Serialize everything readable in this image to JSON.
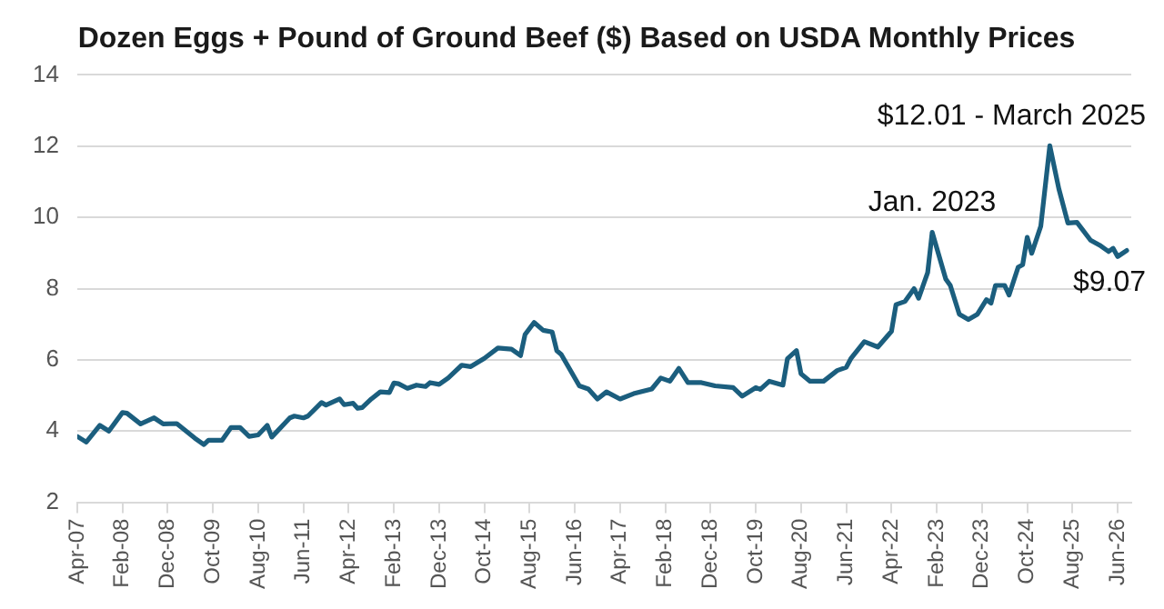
{
  "chart_data": {
    "type": "line",
    "title": "Dozen Eggs + Pound of Ground Beef ($) Based on USDA Monthly Prices",
    "x": [
      "2007-04",
      "2007-06",
      "2007-09",
      "2007-11",
      "2008-02",
      "2008-03",
      "2008-06",
      "2008-09",
      "2008-11",
      "2009-02",
      "2009-06",
      "2009-08",
      "2009-09",
      "2009-12",
      "2010-02",
      "2010-04",
      "2010-06",
      "2010-08",
      "2010-10",
      "2010-11",
      "2011-03",
      "2011-04",
      "2011-06",
      "2011-07",
      "2011-10",
      "2011-11",
      "2012-02",
      "2012-03",
      "2012-05",
      "2012-06",
      "2012-07",
      "2012-09",
      "2012-11",
      "2013-01",
      "2013-02",
      "2013-03",
      "2013-05",
      "2013-07",
      "2013-09",
      "2013-10",
      "2013-12",
      "2014-02",
      "2014-05",
      "2014-07",
      "2014-10",
      "2015-01",
      "2015-04",
      "2015-06",
      "2015-07",
      "2015-09",
      "2015-11",
      "2016-01",
      "2016-02",
      "2016-03",
      "2016-07",
      "2016-09",
      "2016-11",
      "2017-01",
      "2017-04",
      "2017-07",
      "2017-11",
      "2018-01",
      "2018-03",
      "2018-05",
      "2018-07",
      "2018-10",
      "2019-01",
      "2019-05",
      "2019-07",
      "2019-10",
      "2019-11",
      "2020-01",
      "2020-04",
      "2020-05",
      "2020-07",
      "2020-08",
      "2020-10",
      "2021-01",
      "2021-04",
      "2021-06",
      "2021-07",
      "2021-10",
      "2022-01",
      "2022-04",
      "2022-05",
      "2022-07",
      "2022-09",
      "2022-10",
      "2022-12",
      "2023-01",
      "2023-04",
      "2023-05",
      "2023-07",
      "2023-09",
      "2023-11",
      "2024-01",
      "2024-02",
      "2024-03",
      "2024-05",
      "2024-06",
      "2024-08",
      "2024-09",
      "2024-10",
      "2024-11",
      "2025-01",
      "2025-03",
      "2025-05",
      "2025-07",
      "2025-09",
      "2025-12",
      "2026-02",
      "2026-04",
      "2026-05",
      "2026-06",
      "2026-08"
    ],
    "series": [
      {
        "color": "#1b5e7e",
        "values": [
          3.85,
          3.69,
          4.16,
          4.0,
          4.52,
          4.5,
          4.2,
          4.37,
          4.2,
          4.21,
          3.8,
          3.62,
          3.74,
          3.74,
          4.1,
          4.1,
          3.85,
          3.89,
          4.16,
          3.83,
          4.37,
          4.42,
          4.37,
          4.42,
          4.8,
          4.73,
          4.9,
          4.74,
          4.78,
          4.64,
          4.66,
          4.9,
          5.1,
          5.08,
          5.35,
          5.33,
          5.2,
          5.29,
          5.25,
          5.36,
          5.31,
          5.49,
          5.85,
          5.81,
          6.04,
          6.33,
          6.3,
          6.12,
          6.71,
          7.05,
          6.83,
          6.78,
          6.26,
          6.15,
          5.27,
          5.18,
          4.9,
          5.1,
          4.9,
          5.05,
          5.18,
          5.49,
          5.4,
          5.76,
          5.36,
          5.36,
          5.27,
          5.22,
          4.98,
          5.22,
          5.17,
          5.4,
          5.29,
          6.03,
          6.26,
          5.61,
          5.4,
          5.4,
          5.7,
          5.79,
          6.03,
          6.51,
          6.36,
          6.8,
          7.55,
          7.64,
          8.0,
          7.73,
          8.45,
          9.58,
          8.27,
          8.09,
          7.28,
          7.13,
          7.28,
          7.69,
          7.59,
          8.09,
          8.09,
          7.82,
          8.6,
          8.67,
          9.44,
          8.99,
          9.75,
          12.01,
          10.8,
          9.84,
          9.86,
          9.36,
          9.22,
          9.04,
          9.13,
          8.9,
          9.07
        ]
      }
    ],
    "xlim": [
      "2007-04",
      "2026-09"
    ],
    "xticks": [
      {
        "value": "2007-04",
        "label": "Apr-07"
      },
      {
        "value": "2008-02",
        "label": "Feb-08"
      },
      {
        "value": "2008-12",
        "label": "Dec-08"
      },
      {
        "value": "2009-10",
        "label": "Oct-09"
      },
      {
        "value": "2010-08",
        "label": "Aug-10"
      },
      {
        "value": "2011-06",
        "label": "Jun-11"
      },
      {
        "value": "2012-04",
        "label": "Apr-12"
      },
      {
        "value": "2013-02",
        "label": "Feb-13"
      },
      {
        "value": "2013-12",
        "label": "Dec-13"
      },
      {
        "value": "2014-10",
        "label": "Oct-14"
      },
      {
        "value": "2015-08",
        "label": "Aug-15"
      },
      {
        "value": "2016-06",
        "label": "Jun-16"
      },
      {
        "value": "2017-04",
        "label": "Apr-17"
      },
      {
        "value": "2018-02",
        "label": "Feb-18"
      },
      {
        "value": "2018-12",
        "label": "Dec-18"
      },
      {
        "value": "2019-10",
        "label": "Oct-19"
      },
      {
        "value": "2020-08",
        "label": "Aug-20"
      },
      {
        "value": "2021-06",
        "label": "Jun-21"
      },
      {
        "value": "2022-04",
        "label": "Apr-22"
      },
      {
        "value": "2023-02",
        "label": "Feb-23"
      },
      {
        "value": "2023-12",
        "label": "Dec-23"
      },
      {
        "value": "2024-10",
        "label": "Oct-24"
      },
      {
        "value": "2025-08",
        "label": "Aug-25"
      },
      {
        "value": "2026-06",
        "label": "Jun-26"
      }
    ],
    "ylim": [
      2,
      14
    ],
    "yticks": [
      2,
      4,
      6,
      8,
      10,
      12,
      14
    ],
    "grid": "y",
    "legend": false,
    "marker": "none",
    "line_style": "solid",
    "annotations": [
      {
        "text": "Jan. 2023",
        "x": "2023-01",
        "y": 9.58
      },
      {
        "text": "$12.01 - March 2025",
        "x": "2025-03",
        "y": 12.01
      },
      {
        "text": "$9.07",
        "x": "2026-08",
        "y": 9.07
      }
    ]
  }
}
